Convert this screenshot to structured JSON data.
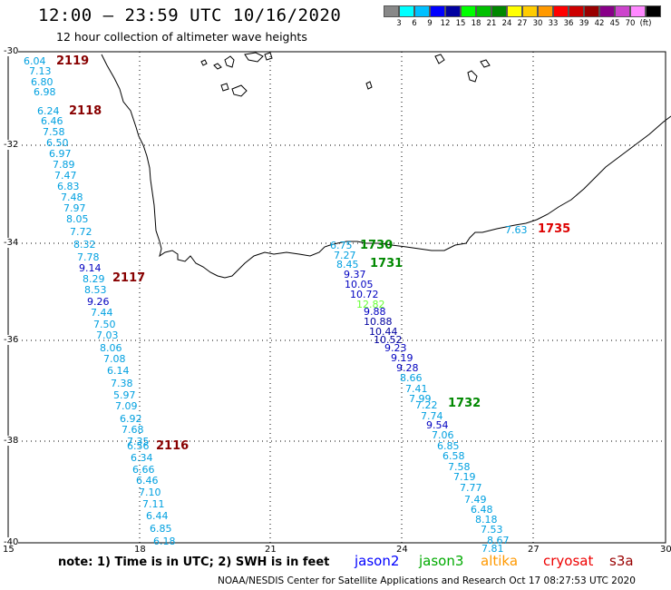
{
  "header": {
    "title": "12:00 – 23:59 UTC 10/16/2020",
    "subtitle": "12 hour collection of altimeter wave heights"
  },
  "color_scale": {
    "colors": [
      "#888888",
      "#00ffff",
      "#00c0ff",
      "#0000ff",
      "#0000a0",
      "#00ff00",
      "#00c000",
      "#008800",
      "#ffff00",
      "#ffcc00",
      "#ff9900",
      "#ff0000",
      "#cc0000",
      "#990000",
      "#880088",
      "#cc44cc",
      "#ff88ff",
      "#000000"
    ],
    "labels": [
      "3",
      "6",
      "9",
      "12",
      "15",
      "18",
      "21",
      "24",
      "27",
      "30",
      "33",
      "36",
      "39",
      "42",
      "45",
      "70",
      "(ft)"
    ]
  },
  "axes": {
    "lat_labels": [
      "-30",
      "-32",
      "-34",
      "-36",
      "-38",
      "-40"
    ],
    "lon_labels": [
      "15",
      "18",
      "21",
      "24",
      "27",
      "30"
    ]
  },
  "times": [
    {
      "text": "2119",
      "color": "#880000"
    },
    {
      "text": "2118",
      "color": "#880000"
    },
    {
      "text": "2117",
      "color": "#880000"
    },
    {
      "text": "2116",
      "color": "#880000"
    },
    {
      "text": "1730",
      "color": "#008800"
    },
    {
      "text": "1731",
      "color": "#008800"
    },
    {
      "text": "1732",
      "color": "#008800"
    },
    {
      "text": "1735",
      "color": "#dd0000"
    }
  ],
  "points": [
    {
      "v": "6.04",
      "c": "#00a0e0"
    },
    {
      "v": "7.13",
      "c": "#00a0e0"
    },
    {
      "v": "6.80",
      "c": "#00a0e0"
    },
    {
      "v": "6.98",
      "c": "#00a0e0"
    },
    {
      "v": "6.24",
      "c": "#00a0e0"
    },
    {
      "v": "6.46",
      "c": "#00a0e0"
    },
    {
      "v": "7.58",
      "c": "#00a0e0"
    },
    {
      "v": "6.50",
      "c": "#00a0e0"
    },
    {
      "v": "6.97",
      "c": "#00a0e0"
    },
    {
      "v": "7.89",
      "c": "#00a0e0"
    },
    {
      "v": "7.47",
      "c": "#00a0e0"
    },
    {
      "v": "6.83",
      "c": "#00a0e0"
    },
    {
      "v": "7.48",
      "c": "#00a0e0"
    },
    {
      "v": "7.97",
      "c": "#00a0e0"
    },
    {
      "v": "8.05",
      "c": "#00a0e0"
    },
    {
      "v": "7.72",
      "c": "#00a0e0"
    },
    {
      "v": "8.32",
      "c": "#00a0e0"
    },
    {
      "v": "7.78",
      "c": "#00a0e0"
    },
    {
      "v": "9.14",
      "c": "#0000c0"
    },
    {
      "v": "8.29",
      "c": "#00a0e0"
    },
    {
      "v": "8.53",
      "c": "#00a0e0"
    },
    {
      "v": "9.26",
      "c": "#0000c0"
    },
    {
      "v": "7.44",
      "c": "#00a0e0"
    },
    {
      "v": "7.50",
      "c": "#00a0e0"
    },
    {
      "v": "7.03",
      "c": "#00a0e0"
    },
    {
      "v": "8.06",
      "c": "#00a0e0"
    },
    {
      "v": "7.08",
      "c": "#00a0e0"
    },
    {
      "v": "6.14",
      "c": "#00a0e0"
    },
    {
      "v": "7.38",
      "c": "#00a0e0"
    },
    {
      "v": "5.97",
      "c": "#00a0e0"
    },
    {
      "v": "7.09",
      "c": "#00a0e0"
    },
    {
      "v": "6.92",
      "c": "#00a0e0"
    },
    {
      "v": "7.68",
      "c": "#00a0e0"
    },
    {
      "v": "7.35",
      "c": "#00a0e0"
    },
    {
      "v": "6.56",
      "c": "#00a0e0"
    },
    {
      "v": "6.34",
      "c": "#00a0e0"
    },
    {
      "v": "6.66",
      "c": "#00a0e0"
    },
    {
      "v": "6.46",
      "c": "#00a0e0"
    },
    {
      "v": "7.10",
      "c": "#00a0e0"
    },
    {
      "v": "7.11",
      "c": "#00a0e0"
    },
    {
      "v": "6.44",
      "c": "#00a0e0"
    },
    {
      "v": "6.85",
      "c": "#00a0e0"
    },
    {
      "v": "6.18",
      "c": "#00a0e0"
    },
    {
      "v": "6.75",
      "c": "#00a0e0"
    },
    {
      "v": "7.27",
      "c": "#00a0e0"
    },
    {
      "v": "8.45",
      "c": "#00a0e0"
    },
    {
      "v": "9.37",
      "c": "#0000c0"
    },
    {
      "v": "10.05",
      "c": "#0000c0"
    },
    {
      "v": "10.72",
      "c": "#0000c0"
    },
    {
      "v": "12.82",
      "c": "#66ff33"
    },
    {
      "v": "9.88",
      "c": "#0000c0"
    },
    {
      "v": "10.88",
      "c": "#0000a0"
    },
    {
      "v": "10.44",
      "c": "#0000a0"
    },
    {
      "v": "10.52",
      "c": "#0000a0"
    },
    {
      "v": "9.23",
      "c": "#0000c0"
    },
    {
      "v": "9.19",
      "c": "#0000c0"
    },
    {
      "v": "9.28",
      "c": "#0000c0"
    },
    {
      "v": "8.66",
      "c": "#00a0e0"
    },
    {
      "v": "7.41",
      "c": "#00a0e0"
    },
    {
      "v": "7.99",
      "c": "#00a0e0"
    },
    {
      "v": "7.22",
      "c": "#00a0e0"
    },
    {
      "v": "7.74",
      "c": "#00a0e0"
    },
    {
      "v": "9.54",
      "c": "#0000c0"
    },
    {
      "v": "7.06",
      "c": "#00a0e0"
    },
    {
      "v": "6.85",
      "c": "#00a0e0"
    },
    {
      "v": "6.58",
      "c": "#00a0e0"
    },
    {
      "v": "7.58",
      "c": "#00a0e0"
    },
    {
      "v": "7.19",
      "c": "#00a0e0"
    },
    {
      "v": "7.77",
      "c": "#00a0e0"
    },
    {
      "v": "7.49",
      "c": "#00a0e0"
    },
    {
      "v": "6.48",
      "c": "#00a0e0"
    },
    {
      "v": "8.18",
      "c": "#00a0e0"
    },
    {
      "v": "7.53",
      "c": "#00a0e0"
    },
    {
      "v": "8.67",
      "c": "#00a0e0"
    },
    {
      "v": "7.81",
      "c": "#00a0e0"
    },
    {
      "v": "7.63",
      "c": "#00a0e0"
    }
  ],
  "footer": {
    "note": "note: 1) Time is in UTC; 2) SWH is in feet",
    "satellites": [
      {
        "name": "jason2",
        "color": "#0000ff"
      },
      {
        "name": "jason3",
        "color": "#00aa00"
      },
      {
        "name": "altika",
        "color": "#ff9900"
      },
      {
        "name": "cryosat",
        "color": "#ee0000"
      },
      {
        "name": "s3a",
        "color": "#990000"
      }
    ],
    "credit": "NOAA/NESDIS Center for Satellite Applications and Research    Oct 17 08:27:53 UTC 2020"
  }
}
